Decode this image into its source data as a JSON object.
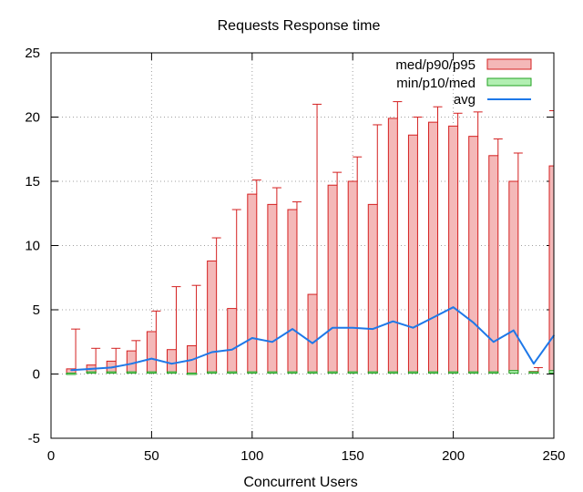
{
  "chart_data": {
    "type": "bar",
    "title": "Requests Response time",
    "xlabel": "Concurrent Users",
    "ylabel": "",
    "xlim": [
      0,
      250
    ],
    "ylim": [
      -5,
      25
    ],
    "xticks": [
      0,
      50,
      100,
      150,
      200,
      250
    ],
    "yticks": [
      -5,
      0,
      5,
      10,
      15,
      20,
      25
    ],
    "grid": true,
    "legend_position": "top-right",
    "x": [
      10,
      20,
      30,
      40,
      50,
      60,
      70,
      80,
      90,
      100,
      110,
      120,
      130,
      140,
      150,
      160,
      170,
      180,
      190,
      200,
      210,
      220,
      230,
      240,
      250
    ],
    "series": [
      {
        "name": "med/p90/p95",
        "color": "#f4b8b8",
        "stroke": "#d42020",
        "med": [
          0.0,
          0.1,
          0.1,
          0.1,
          0.1,
          0.1,
          0.0,
          0.1,
          0.1,
          0.1,
          0.1,
          0.1,
          0.1,
          0.1,
          0.1,
          0.1,
          0.1,
          0.1,
          0.1,
          0.1,
          0.1,
          0.1,
          0.2,
          0.1,
          0.2
        ],
        "p90": [
          0.4,
          0.7,
          1.0,
          1.8,
          3.3,
          1.9,
          2.2,
          8.8,
          5.1,
          14.0,
          13.2,
          12.8,
          6.2,
          14.7,
          15.0,
          13.2,
          19.9,
          18.6,
          19.6,
          19.3,
          18.5,
          17.0,
          15.0,
          0.2,
          16.2
        ],
        "p95": [
          3.5,
          2.0,
          2.0,
          2.6,
          4.9,
          6.8,
          6.9,
          10.6,
          12.8,
          15.1,
          14.5,
          13.4,
          21.0,
          15.7,
          16.9,
          19.4,
          21.2,
          20.0,
          20.8,
          20.3,
          20.4,
          18.3,
          17.2,
          0.5,
          20.5
        ]
      },
      {
        "name": "min/p10/med",
        "color": "#b2efb2",
        "stroke": "#21a121",
        "min": [
          0.0,
          0.0,
          0.0,
          0.0,
          0.0,
          0.0,
          -0.1,
          0.0,
          0.0,
          0.0,
          0.0,
          0.0,
          0.0,
          0.0,
          0.0,
          0.0,
          0.0,
          0.0,
          0.0,
          0.0,
          0.0,
          0.0,
          0.0,
          0.0,
          0.0
        ],
        "p10": [
          0.0,
          0.0,
          0.0,
          0.0,
          0.0,
          0.0,
          0.0,
          0.0,
          0.0,
          0.0,
          0.0,
          0.0,
          0.0,
          0.0,
          0.0,
          0.0,
          0.0,
          0.0,
          0.0,
          0.0,
          0.0,
          0.0,
          0.1,
          0.0,
          0.1
        ]
      },
      {
        "name": "avg",
        "color": "#1e78e8",
        "values": [
          0.3,
          0.4,
          0.5,
          0.8,
          1.2,
          0.8,
          1.1,
          1.7,
          1.9,
          2.8,
          2.5,
          3.5,
          2.4,
          3.6,
          3.6,
          3.5,
          4.1,
          3.6,
          4.4,
          5.2,
          4.0,
          2.5,
          3.4,
          0.8,
          3.0
        ]
      }
    ]
  }
}
